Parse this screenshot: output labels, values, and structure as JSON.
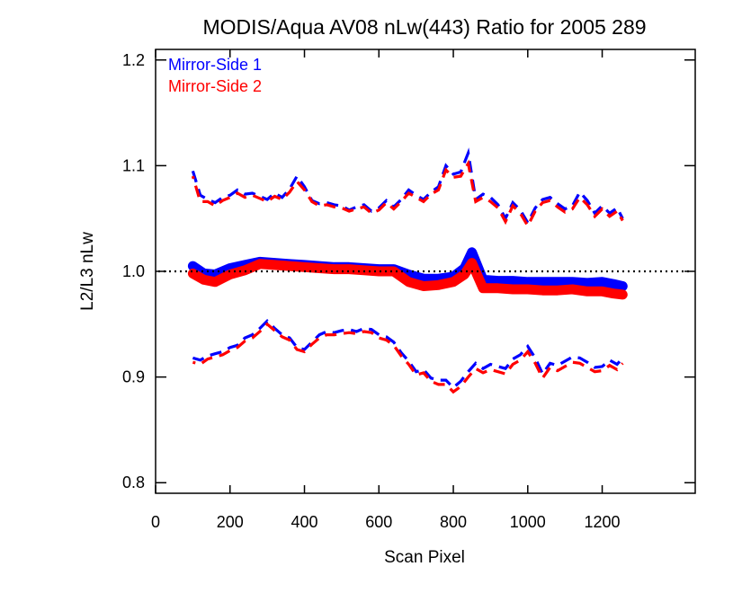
{
  "chart_data": {
    "type": "line",
    "title": "MODIS/Aqua AV08 nLw(443) Ratio for 2005 289",
    "xlabel": "Scan Pixel",
    "ylabel": "L2/L3 nLw",
    "xlim": [
      0,
      1450
    ],
    "ylim": [
      0.79,
      1.21
    ],
    "xticks": [
      0,
      200,
      400,
      600,
      800,
      1000,
      1200
    ],
    "xtick_labels": [
      "0",
      "200",
      "400",
      "600",
      "800",
      "1000",
      "1200"
    ],
    "yticks": [
      0.8,
      0.9,
      1.0,
      1.1,
      1.2
    ],
    "ytick_labels": [
      "0.8",
      "0.9",
      "1.0",
      "1.1",
      "1.2"
    ],
    "reference_line": {
      "y": 1.0,
      "style": "dotted",
      "color": "#000000"
    },
    "legend": {
      "position": "top-left",
      "entries": [
        {
          "label": "Mirror-Side 1",
          "color": "#0000ff"
        },
        {
          "label": "Mirror-Side 2",
          "color": "#ff0000"
        }
      ]
    },
    "series": [
      {
        "name": "Mirror-Side 1",
        "color": "#0000ff",
        "mean": {
          "x": [
            100,
            130,
            160,
            200,
            240,
            280,
            320,
            360,
            400,
            440,
            480,
            520,
            560,
            600,
            640,
            680,
            720,
            760,
            800,
            830,
            850,
            880,
            920,
            960,
            1000,
            1040,
            1080,
            1120,
            1160,
            1200,
            1230,
            1255
          ],
          "y": [
            1.005,
            0.998,
            0.997,
            1.003,
            1.006,
            1.009,
            1.008,
            1.007,
            1.006,
            1.005,
            1.004,
            1.004,
            1.003,
            1.002,
            1.002,
            0.997,
            0.993,
            0.993,
            0.995,
            1.003,
            1.018,
            0.992,
            0.991,
            0.991,
            0.99,
            0.99,
            0.99,
            0.99,
            0.989,
            0.99,
            0.988,
            0.986
          ]
        },
        "upper": {
          "x": [
            100,
            120,
            140,
            160,
            180,
            200,
            220,
            240,
            260,
            280,
            300,
            320,
            340,
            360,
            380,
            400,
            420,
            440,
            460,
            480,
            500,
            520,
            540,
            560,
            580,
            600,
            620,
            640,
            660,
            680,
            700,
            720,
            740,
            760,
            780,
            800,
            820,
            840,
            860,
            880,
            900,
            920,
            940,
            960,
            980,
            1000,
            1020,
            1040,
            1060,
            1080,
            1100,
            1120,
            1140,
            1160,
            1180,
            1200,
            1220,
            1240,
            1255
          ],
          "y": [
            1.095,
            1.072,
            1.068,
            1.065,
            1.07,
            1.072,
            1.077,
            1.073,
            1.074,
            1.071,
            1.068,
            1.074,
            1.07,
            1.078,
            1.09,
            1.08,
            1.067,
            1.064,
            1.065,
            1.063,
            1.062,
            1.058,
            1.061,
            1.063,
            1.057,
            1.06,
            1.067,
            1.061,
            1.068,
            1.077,
            1.072,
            1.068,
            1.075,
            1.08,
            1.1,
            1.092,
            1.094,
            1.112,
            1.068,
            1.073,
            1.07,
            1.063,
            1.05,
            1.065,
            1.058,
            1.046,
            1.06,
            1.068,
            1.07,
            1.064,
            1.059,
            1.062,
            1.075,
            1.067,
            1.055,
            1.062,
            1.055,
            1.06,
            1.05
          ]
        },
        "lower": {
          "x": [
            100,
            120,
            140,
            160,
            180,
            200,
            220,
            240,
            260,
            280,
            300,
            320,
            340,
            360,
            380,
            400,
            420,
            440,
            460,
            480,
            500,
            520,
            540,
            560,
            580,
            600,
            620,
            640,
            660,
            680,
            700,
            720,
            740,
            760,
            780,
            800,
            820,
            840,
            860,
            880,
            900,
            920,
            940,
            960,
            980,
            1000,
            1020,
            1040,
            1060,
            1080,
            1100,
            1120,
            1140,
            1160,
            1180,
            1200,
            1220,
            1240,
            1255
          ],
          "y": [
            0.918,
            0.916,
            0.92,
            0.922,
            0.924,
            0.928,
            0.93,
            0.937,
            0.94,
            0.946,
            0.953,
            0.946,
            0.94,
            0.937,
            0.928,
            0.926,
            0.933,
            0.94,
            0.943,
            0.942,
            0.944,
            0.945,
            0.943,
            0.946,
            0.945,
            0.94,
            0.938,
            0.933,
            0.923,
            0.915,
            0.905,
            0.907,
            0.899,
            0.897,
            0.897,
            0.89,
            0.896,
            0.905,
            0.913,
            0.908,
            0.912,
            0.91,
            0.908,
            0.917,
            0.921,
            0.929,
            0.918,
            0.903,
            0.913,
            0.911,
            0.915,
            0.919,
            0.918,
            0.914,
            0.909,
            0.91,
            0.916,
            0.912,
            0.918
          ]
        }
      },
      {
        "name": "Mirror-Side 2",
        "color": "#ff0000",
        "mean": {
          "x": [
            100,
            130,
            160,
            200,
            240,
            280,
            320,
            360,
            400,
            440,
            480,
            520,
            560,
            600,
            640,
            680,
            720,
            760,
            800,
            830,
            850,
            880,
            920,
            960,
            1000,
            1040,
            1080,
            1120,
            1160,
            1200,
            1230,
            1255
          ],
          "y": [
            0.998,
            0.992,
            0.99,
            0.997,
            1.001,
            1.007,
            1.006,
            1.005,
            1.004,
            1.003,
            1.002,
            1.002,
            1.001,
            1.0,
            1.0,
            0.99,
            0.986,
            0.987,
            0.99,
            0.997,
            1.008,
            0.984,
            0.984,
            0.983,
            0.983,
            0.982,
            0.982,
            0.983,
            0.981,
            0.981,
            0.979,
            0.978
          ]
        },
        "upper": {
          "x": [
            100,
            120,
            140,
            160,
            180,
            200,
            220,
            240,
            260,
            280,
            300,
            320,
            340,
            360,
            380,
            400,
            420,
            440,
            460,
            480,
            500,
            520,
            540,
            560,
            580,
            600,
            620,
            640,
            660,
            680,
            700,
            720,
            740,
            760,
            780,
            800,
            820,
            840,
            860,
            880,
            900,
            920,
            940,
            960,
            980,
            1000,
            1020,
            1040,
            1060,
            1080,
            1100,
            1120,
            1140,
            1160,
            1180,
            1200,
            1220,
            1240,
            1255
          ],
          "y": [
            1.09,
            1.066,
            1.066,
            1.062,
            1.067,
            1.07,
            1.074,
            1.07,
            1.072,
            1.069,
            1.066,
            1.071,
            1.068,
            1.075,
            1.085,
            1.077,
            1.066,
            1.062,
            1.063,
            1.061,
            1.06,
            1.057,
            1.059,
            1.061,
            1.055,
            1.058,
            1.065,
            1.059,
            1.066,
            1.074,
            1.07,
            1.066,
            1.073,
            1.077,
            1.096,
            1.089,
            1.09,
            1.102,
            1.066,
            1.07,
            1.066,
            1.06,
            1.047,
            1.062,
            1.055,
            1.043,
            1.057,
            1.065,
            1.067,
            1.061,
            1.056,
            1.059,
            1.07,
            1.063,
            1.052,
            1.059,
            1.052,
            1.057,
            1.048
          ]
        },
        "lower": {
          "x": [
            100,
            120,
            140,
            160,
            180,
            200,
            220,
            240,
            260,
            280,
            300,
            320,
            340,
            360,
            380,
            400,
            420,
            440,
            460,
            480,
            500,
            520,
            540,
            560,
            580,
            600,
            620,
            640,
            660,
            680,
            700,
            720,
            740,
            760,
            780,
            800,
            820,
            840,
            860,
            880,
            900,
            920,
            940,
            960,
            980,
            1000,
            1020,
            1040,
            1060,
            1080,
            1100,
            1120,
            1140,
            1160,
            1180,
            1200,
            1220,
            1240,
            1255
          ],
          "y": [
            0.914,
            0.912,
            0.917,
            0.919,
            0.921,
            0.925,
            0.928,
            0.934,
            0.937,
            0.943,
            0.95,
            0.944,
            0.938,
            0.935,
            0.926,
            0.924,
            0.931,
            0.937,
            0.94,
            0.94,
            0.941,
            0.942,
            0.941,
            0.943,
            0.942,
            0.937,
            0.935,
            0.93,
            0.92,
            0.912,
            0.902,
            0.904,
            0.896,
            0.893,
            0.893,
            0.886,
            0.891,
            0.9,
            0.908,
            0.904,
            0.907,
            0.905,
            0.903,
            0.912,
            0.916,
            0.924,
            0.913,
            0.899,
            0.909,
            0.906,
            0.91,
            0.914,
            0.913,
            0.909,
            0.905,
            0.906,
            0.911,
            0.907,
            0.913
          ]
        }
      }
    ]
  }
}
